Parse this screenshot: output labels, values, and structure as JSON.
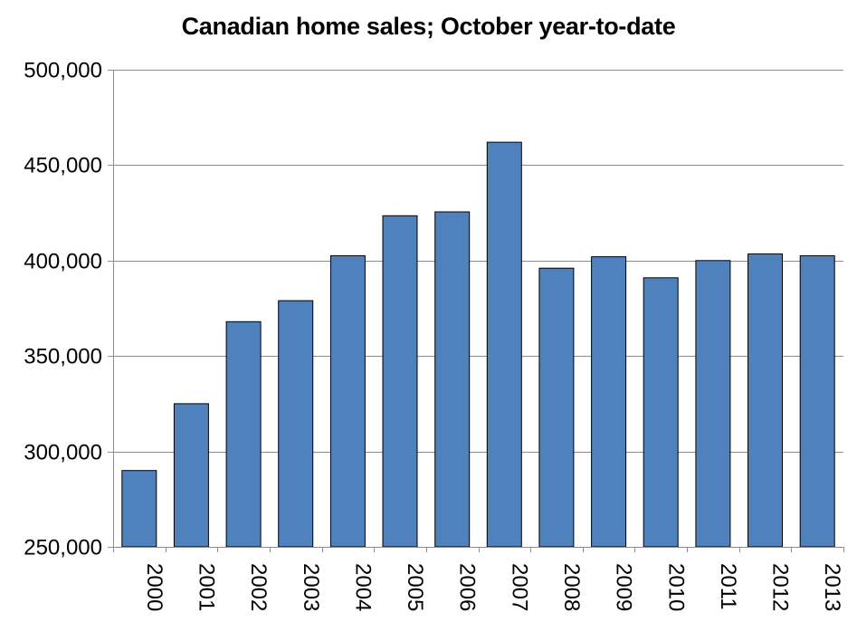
{
  "chart_data": {
    "type": "bar",
    "title": "Canadian home sales; October year-to-date",
    "xlabel": "",
    "ylabel": "",
    "categories": [
      "2000",
      "2001",
      "2002",
      "2003",
      "2004",
      "2005",
      "2006",
      "2007",
      "2008",
      "2009",
      "2010",
      "2011",
      "2012",
      "2013"
    ],
    "values": [
      290000,
      325000,
      368000,
      379000,
      402500,
      423500,
      425500,
      462000,
      396000,
      402000,
      391000,
      400000,
      403500,
      402500
    ],
    "ylim": [
      250000,
      500000
    ],
    "yticks": [
      250000,
      300000,
      350000,
      400000,
      450000,
      500000
    ],
    "ytick_labels": [
      "250,000",
      "300,000",
      "350,000",
      "400,000",
      "450,000",
      "500,000"
    ],
    "grid": true,
    "legend": "none",
    "colors": {
      "bar": "#4f81bd",
      "bar_edge": "#000000",
      "grid": "#8c8c8c",
      "axis": "#8c8c8c"
    }
  }
}
